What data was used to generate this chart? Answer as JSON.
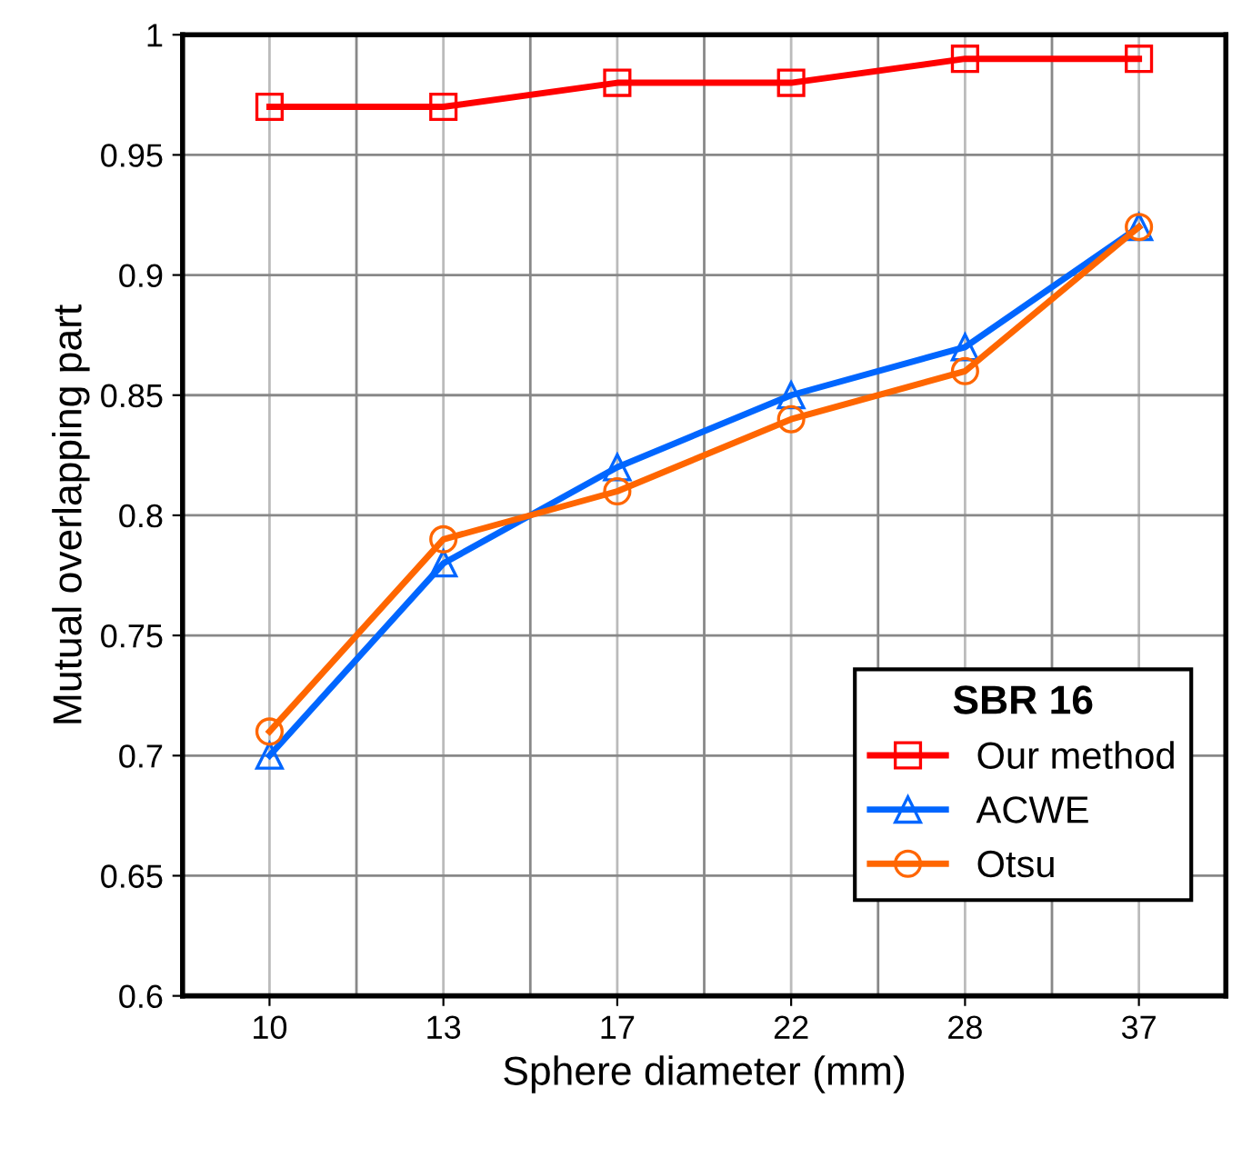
{
  "chart_data": {
    "type": "line",
    "xlabel": "Sphere diameter (mm)",
    "ylabel": "Mutual overlapping part",
    "legend_title": "SBR 16",
    "categories": [
      "10",
      "13",
      "17",
      "22",
      "28",
      "37"
    ],
    "series": [
      {
        "name": "Our method",
        "color": "#ff0000",
        "marker": "square",
        "values": [
          0.97,
          0.97,
          0.98,
          0.98,
          0.99,
          0.99
        ]
      },
      {
        "name": "ACWE",
        "color": "#0066ff",
        "marker": "triangle",
        "values": [
          0.7,
          0.78,
          0.82,
          0.85,
          0.87,
          0.92
        ]
      },
      {
        "name": "Otsu",
        "color": "#ff6600",
        "marker": "circle",
        "values": [
          0.71,
          0.79,
          0.81,
          0.84,
          0.86,
          0.92
        ]
      }
    ],
    "ylim": [
      0.6,
      1
    ],
    "yticks": [
      0.6,
      0.65,
      0.7,
      0.75,
      0.8,
      0.85,
      0.9,
      0.95,
      1
    ],
    "grid": true,
    "legend": "bottom right",
    "line_style": "solid"
  }
}
